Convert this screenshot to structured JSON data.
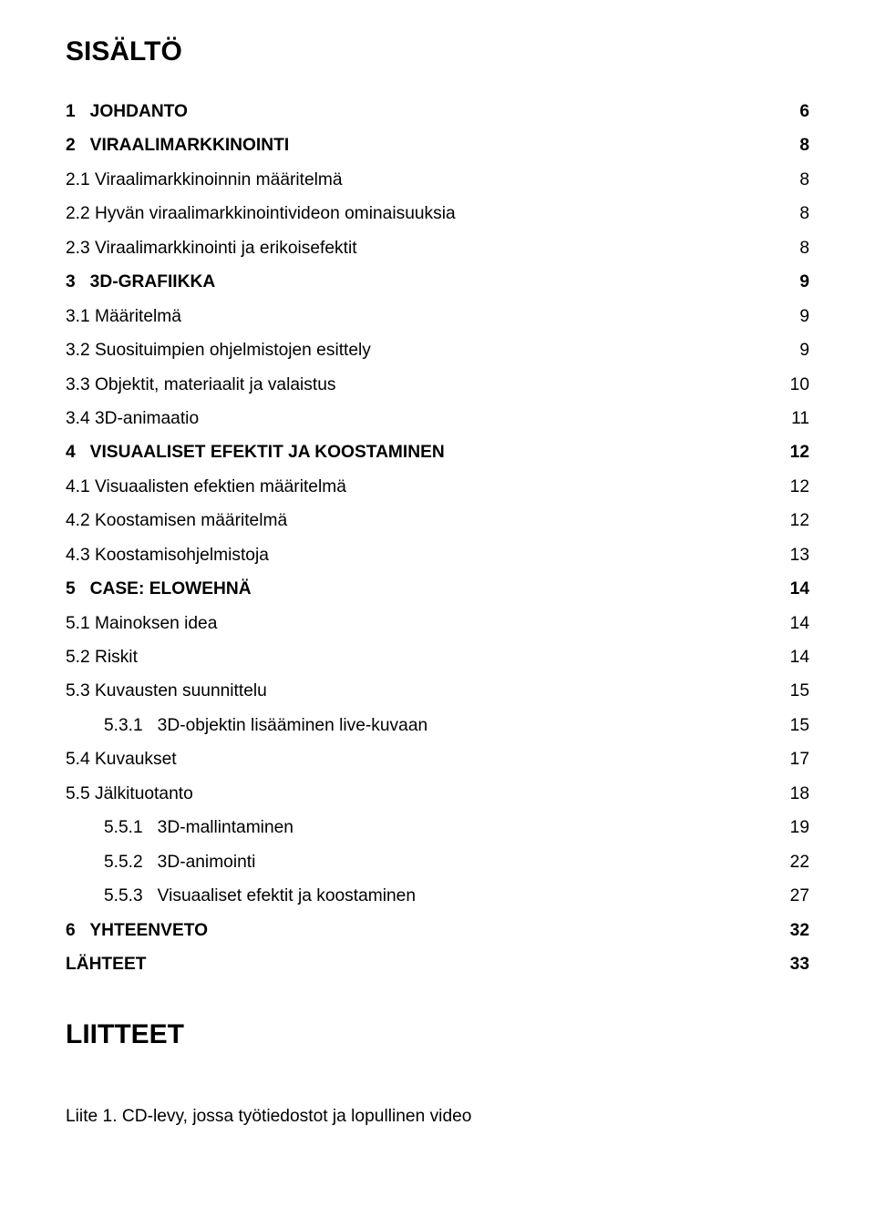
{
  "colors": {
    "text": "#000000",
    "background": "#ffffff"
  },
  "typography": {
    "family": "Arial",
    "title_size_pt": 22,
    "body_size_pt": 14.5,
    "line_height": 1.95
  },
  "title": "SISÄLTÖ",
  "toc": [
    {
      "level": 1,
      "bold": true,
      "label": "1   JOHDANTO",
      "page": "6"
    },
    {
      "level": 1,
      "bold": true,
      "label": "2   VIRAALIMARKKINOINTI",
      "page": "8"
    },
    {
      "level": 2,
      "bold": false,
      "label": "2.1 Viraalimarkkinoinnin määritelmä",
      "page": "8"
    },
    {
      "level": 2,
      "bold": false,
      "label": "2.2 Hyvän viraalimarkkinointivideon ominaisuuksia",
      "page": "8"
    },
    {
      "level": 2,
      "bold": false,
      "label": "2.3 Viraalimarkkinointi ja erikoisefektit",
      "page": "8"
    },
    {
      "level": 1,
      "bold": true,
      "label": "3   3D-GRAFIIKKA",
      "page": "9"
    },
    {
      "level": 2,
      "bold": false,
      "label": "3.1 Määritelmä",
      "page": "9"
    },
    {
      "level": 2,
      "bold": false,
      "label": "3.2 Suosituimpien ohjelmistojen esittely",
      "page": "9"
    },
    {
      "level": 2,
      "bold": false,
      "label": "3.3 Objektit, materiaalit ja valaistus",
      "page": "10"
    },
    {
      "level": 2,
      "bold": false,
      "label": "3.4 3D-animaatio",
      "page": "11"
    },
    {
      "level": 1,
      "bold": true,
      "label": "4   VISUAALISET EFEKTIT JA KOOSTAMINEN",
      "page": "12"
    },
    {
      "level": 2,
      "bold": false,
      "label": "4.1 Visuaalisten efektien määritelmä",
      "page": "12"
    },
    {
      "level": 2,
      "bold": false,
      "label": "4.2 Koostamisen määritelmä",
      "page": "12"
    },
    {
      "level": 2,
      "bold": false,
      "label": "4.3 Koostamisohjelmistoja",
      "page": "13"
    },
    {
      "level": 1,
      "bold": true,
      "label": "5   CASE: ELOWEHNÄ",
      "page": "14"
    },
    {
      "level": 2,
      "bold": false,
      "label": "5.1 Mainoksen idea",
      "page": "14"
    },
    {
      "level": 2,
      "bold": false,
      "label": "5.2 Riskit",
      "page": "14"
    },
    {
      "level": 2,
      "bold": false,
      "label": "5.3 Kuvausten suunnittelu",
      "page": "15"
    },
    {
      "level": 3,
      "bold": false,
      "label": "5.3.1   3D-objektin lisääminen live-kuvaan",
      "page": "15"
    },
    {
      "level": 2,
      "bold": false,
      "label": "5.4 Kuvaukset",
      "page": "17"
    },
    {
      "level": 2,
      "bold": false,
      "label": "5.5 Jälkituotanto",
      "page": "18"
    },
    {
      "level": 3,
      "bold": false,
      "label": "5.5.1   3D-mallintaminen",
      "page": "19"
    },
    {
      "level": 3,
      "bold": false,
      "label": "5.5.2   3D-animointi",
      "page": "22"
    },
    {
      "level": 3,
      "bold": false,
      "label": "5.5.3   Visuaaliset efektit ja koostaminen",
      "page": "27"
    },
    {
      "level": 1,
      "bold": true,
      "label": "6   YHTEENVETO",
      "page": "32"
    },
    {
      "level": 1,
      "bold": true,
      "label": "LÄHTEET",
      "page": "33"
    }
  ],
  "appendix_title": "LIITTEET",
  "appendix_line": "Liite 1. CD-levy, jossa työtiedostot ja lopullinen video"
}
